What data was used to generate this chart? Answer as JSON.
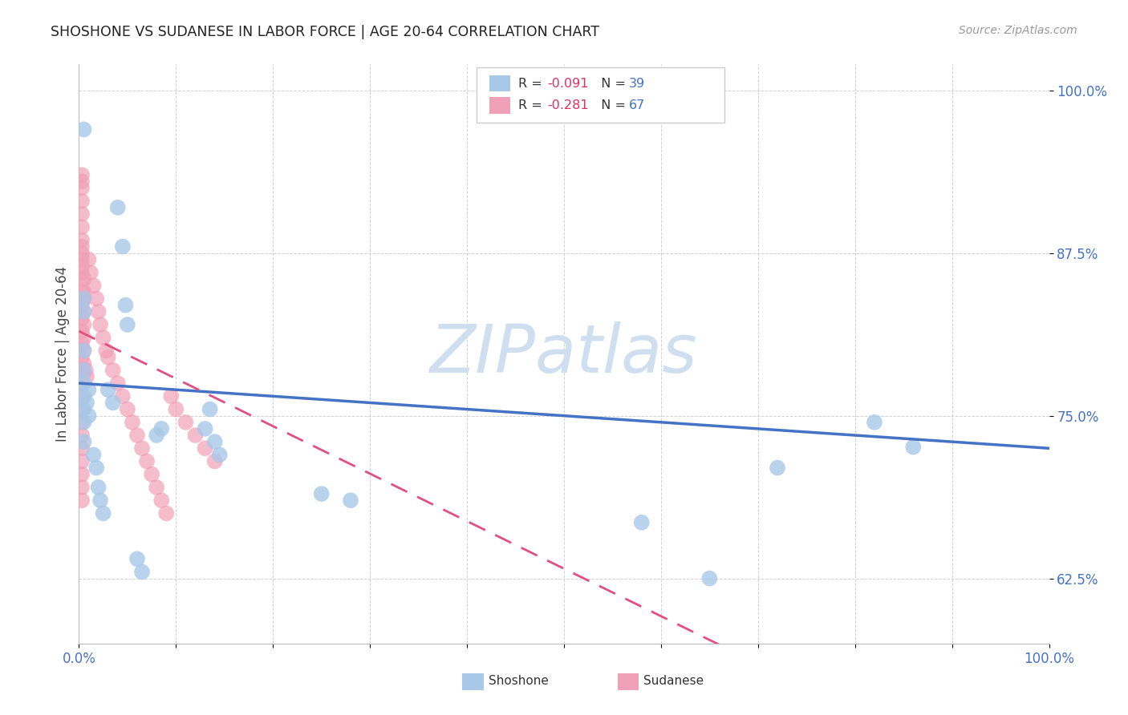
{
  "title": "SHOSHONE VS SUDANESE IN LABOR FORCE | AGE 20-64 CORRELATION CHART",
  "source": "Source: ZipAtlas.com",
  "ylabel": "In Labor Force | Age 20-64",
  "xlim": [
    0.0,
    1.0
  ],
  "ylim": [
    0.575,
    1.02
  ],
  "x_ticks": [
    0.0,
    0.1,
    0.2,
    0.3,
    0.4,
    0.5,
    0.6,
    0.7,
    0.8,
    0.9,
    1.0
  ],
  "y_ticks": [
    0.625,
    0.75,
    0.875,
    1.0
  ],
  "y_tick_labels": [
    "62.5%",
    "75.0%",
    "87.5%",
    "100.0%"
  ],
  "shoshone_R": -0.091,
  "shoshone_N": 39,
  "sudanese_R": -0.281,
  "sudanese_N": 67,
  "shoshone_color": "#a8c8e8",
  "sudanese_color": "#f0a0b8",
  "trendline_shoshone_color": "#4472c4",
  "trendline_sudanese_color": "#e05080",
  "watermark_color": "#d0dff0",
  "shoshone_x": [
    0.005,
    0.005,
    0.005,
    0.005,
    0.005,
    0.005,
    0.005,
    0.005,
    0.005,
    0.005,
    0.008,
    0.01,
    0.01,
    0.015,
    0.018,
    0.02,
    0.022,
    0.025,
    0.03,
    0.035,
    0.04,
    0.045,
    0.048,
    0.05,
    0.06,
    0.065,
    0.08,
    0.085,
    0.13,
    0.135,
    0.14,
    0.145,
    0.25,
    0.28,
    0.58,
    0.65,
    0.72,
    0.82,
    0.86
  ],
  "shoshone_y": [
    0.97,
    0.84,
    0.83,
    0.8,
    0.785,
    0.775,
    0.765,
    0.755,
    0.745,
    0.73,
    0.76,
    0.77,
    0.75,
    0.72,
    0.71,
    0.695,
    0.685,
    0.675,
    0.77,
    0.76,
    0.91,
    0.88,
    0.835,
    0.82,
    0.64,
    0.63,
    0.735,
    0.74,
    0.74,
    0.755,
    0.73,
    0.72,
    0.69,
    0.685,
    0.668,
    0.625,
    0.71,
    0.745,
    0.726
  ],
  "sudanese_x": [
    0.003,
    0.003,
    0.003,
    0.003,
    0.003,
    0.003,
    0.003,
    0.003,
    0.003,
    0.003,
    0.003,
    0.003,
    0.003,
    0.003,
    0.003,
    0.003,
    0.003,
    0.003,
    0.003,
    0.003,
    0.003,
    0.003,
    0.003,
    0.003,
    0.003,
    0.003,
    0.003,
    0.003,
    0.003,
    0.003,
    0.005,
    0.005,
    0.005,
    0.005,
    0.005,
    0.005,
    0.005,
    0.005,
    0.007,
    0.008,
    0.01,
    0.012,
    0.015,
    0.018,
    0.02,
    0.022,
    0.025,
    0.028,
    0.03,
    0.035,
    0.04,
    0.045,
    0.05,
    0.055,
    0.06,
    0.065,
    0.07,
    0.075,
    0.08,
    0.085,
    0.09,
    0.095,
    0.1,
    0.11,
    0.12,
    0.13,
    0.14
  ],
  "sudanese_y": [
    0.935,
    0.925,
    0.915,
    0.905,
    0.895,
    0.885,
    0.875,
    0.865,
    0.855,
    0.845,
    0.835,
    0.825,
    0.815,
    0.805,
    0.795,
    0.785,
    0.775,
    0.765,
    0.755,
    0.745,
    0.735,
    0.725,
    0.715,
    0.705,
    0.695,
    0.685,
    0.93,
    0.88,
    0.87,
    0.86,
    0.855,
    0.845,
    0.84,
    0.83,
    0.82,
    0.81,
    0.8,
    0.79,
    0.785,
    0.78,
    0.87,
    0.86,
    0.85,
    0.84,
    0.83,
    0.82,
    0.81,
    0.8,
    0.795,
    0.785,
    0.775,
    0.765,
    0.755,
    0.745,
    0.735,
    0.725,
    0.715,
    0.705,
    0.695,
    0.685,
    0.675,
    0.765,
    0.755,
    0.745,
    0.735,
    0.725,
    0.715
  ]
}
